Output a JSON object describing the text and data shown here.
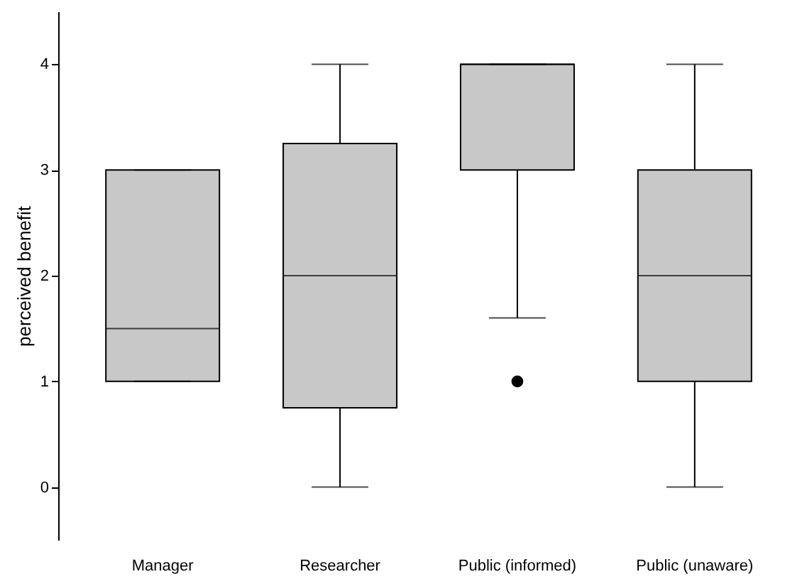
{
  "chart_data": {
    "type": "box",
    "ylabel": "perceived benefit",
    "categories": [
      "Manager",
      "Researcher",
      "Public (informed)",
      "Public (unaware)"
    ],
    "series": [
      {
        "color": "#c8c8c8",
        "boxes": [
          {
            "low": 1,
            "q1": 1,
            "median": 1.5,
            "q3": 3,
            "high": 3
          },
          {
            "low": 0,
            "q1": 0.75,
            "median": 2,
            "q3": 3.25,
            "high": 4
          },
          {
            "low": 1.6,
            "q1": 3,
            "median": 4,
            "q3": 4,
            "high": 4,
            "outliers": [
              1
            ]
          },
          {
            "low": 0,
            "q1": 1,
            "median": 2,
            "q3": 3,
            "high": 4
          }
        ]
      }
    ],
    "ylim": [
      -0.5,
      4.5
    ],
    "yticks": [
      0,
      1,
      2,
      3,
      4
    ],
    "grid": false
  }
}
